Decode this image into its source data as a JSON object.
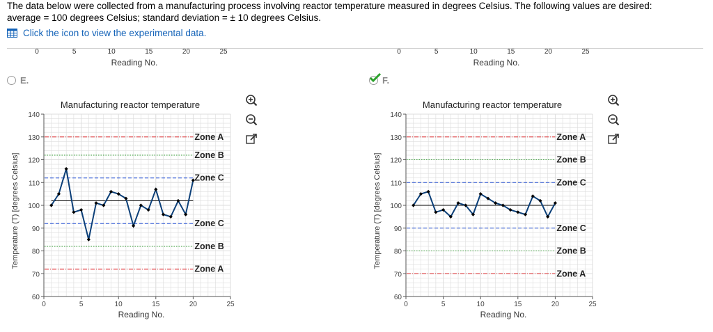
{
  "question": {
    "line1": "The data below were collected from a manufacturing process involving reactor temperature measured in degrees Celsius. The following values are desired:",
    "line2": "average = 100 degrees Celsius; standard deviation = ± 10 degrees Celsius."
  },
  "data_link": {
    "label": "Click the icon to view the experimental data.",
    "icon": "table-icon"
  },
  "options": [
    {
      "letter": "E.",
      "selected": false
    },
    {
      "letter": "F.",
      "selected": true
    }
  ],
  "tool_icons": [
    "zoom-in-icon",
    "zoom-out-icon",
    "external-link-icon"
  ],
  "colors": {
    "series": "#0b3f78",
    "zoneA": "#e0262b",
    "zoneB": "#3aa33a",
    "zoneC": "#2a55d4",
    "grid": "#dcdcdc",
    "link": "#1463b8"
  },
  "top_strip": {
    "tick_labels": [
      "0",
      "5",
      "10",
      "15",
      "20",
      "25"
    ],
    "xlabel": "Reading No."
  },
  "chart_data": [
    {
      "type": "line",
      "title": "Manufacturing reactor temperature",
      "xlabel": "Reading No.",
      "ylabel": "Temperature (T) [degrees Celsius]",
      "xlim": [
        0,
        25
      ],
      "ylim": [
        60,
        140
      ],
      "xticks": [
        "0",
        "5",
        "10",
        "15",
        "20",
        "25"
      ],
      "yticks": [
        "60",
        "70",
        "80",
        "90",
        "100",
        "110",
        "120",
        "130",
        "140"
      ],
      "grid": true,
      "x": [
        1,
        2,
        3,
        4,
        5,
        6,
        7,
        8,
        9,
        10,
        11,
        12,
        13,
        14,
        15,
        16,
        17,
        18,
        19,
        20
      ],
      "values": [
        100,
        105,
        116,
        97,
        98,
        85,
        101,
        100,
        106,
        105,
        103,
        91,
        100,
        98,
        107,
        96,
        95,
        102,
        96,
        111
      ],
      "center_line": 102,
      "zones": [
        {
          "label": "Zone A",
          "y": 130,
          "color": "#e0262b",
          "style": "dashdot"
        },
        {
          "label": "Zone B",
          "y": 122,
          "color": "#3aa33a",
          "style": "dotted"
        },
        {
          "label": "Zone C",
          "y": 112,
          "color": "#2a55d4",
          "style": "dashed"
        },
        {
          "label": "Zone C",
          "y": 92,
          "color": "#2a55d4",
          "style": "dashed"
        },
        {
          "label": "Zone B",
          "y": 82,
          "color": "#3aa33a",
          "style": "dotted"
        },
        {
          "label": "Zone A",
          "y": 72,
          "color": "#e0262b",
          "style": "dashdot"
        }
      ]
    },
    {
      "type": "line",
      "title": "Manufacturing reactor temperature",
      "xlabel": "Reading No.",
      "ylabel": "Temperature (T) [degrees Celsius]",
      "xlim": [
        0,
        25
      ],
      "ylim": [
        60,
        140
      ],
      "xticks": [
        "0",
        "5",
        "10",
        "15",
        "20",
        "25"
      ],
      "yticks": [
        "60",
        "70",
        "80",
        "90",
        "100",
        "110",
        "120",
        "130",
        "140"
      ],
      "grid": true,
      "x": [
        1,
        2,
        3,
        4,
        5,
        6,
        7,
        8,
        9,
        10,
        11,
        12,
        13,
        14,
        15,
        16,
        17,
        18,
        19,
        20
      ],
      "values": [
        100,
        105,
        106,
        97,
        98,
        95,
        101,
        100,
        96,
        105,
        103,
        101,
        100,
        98,
        97,
        96,
        104,
        102,
        95,
        101
      ],
      "center_line": 100,
      "zones": [
        {
          "label": "Zone A",
          "y": 130,
          "color": "#e0262b",
          "style": "dashdot"
        },
        {
          "label": "Zone B",
          "y": 120,
          "color": "#3aa33a",
          "style": "dotted"
        },
        {
          "label": "Zone C",
          "y": 110,
          "color": "#2a55d4",
          "style": "dashed"
        },
        {
          "label": "Zone C",
          "y": 90,
          "color": "#2a55d4",
          "style": "dashed"
        },
        {
          "label": "Zone B",
          "y": 80,
          "color": "#3aa33a",
          "style": "dotted"
        },
        {
          "label": "Zone A",
          "y": 70,
          "color": "#e0262b",
          "style": "dashdot"
        }
      ]
    }
  ]
}
